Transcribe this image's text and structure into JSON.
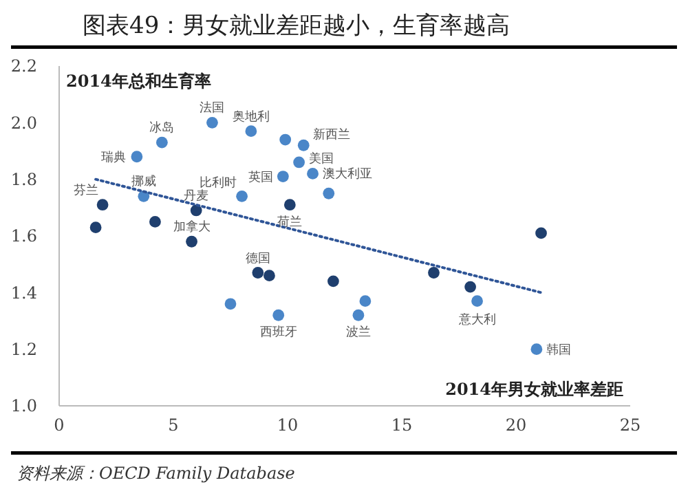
{
  "chart_data": {
    "type": "scatter",
    "title": "图表49：男女就业差距越小，生育率越高",
    "xlabel": "2014年男女就业率差距",
    "ylabel": "2014年总和生育率",
    "xlim": [
      0,
      25
    ],
    "xticks": [
      0,
      5,
      10,
      15,
      20,
      25
    ],
    "ylim": [
      1.0,
      2.2
    ],
    "yticks": [
      {
        "value": 1.0,
        "label": "1.0"
      },
      {
        "value": 1.2,
        "label": "1.2"
      },
      {
        "value": 1.4,
        "label": "1.4"
      },
      {
        "value": 1.6,
        "label": "1.6"
      },
      {
        "value": 1.8,
        "label": "1.8"
      },
      {
        "value": 2.0,
        "label": "2.0"
      },
      {
        "value": 2.2,
        "label": "2.2"
      }
    ],
    "grid": false,
    "series": [
      {
        "marker": "circle",
        "x": [
          6.7,
          8.4,
          9.9,
          10.7,
          4.5,
          3.4,
          10.5,
          11.1,
          9.8,
          11.8,
          3.7,
          8.0,
          1.9,
          6.0,
          10.1,
          1.6,
          4.2,
          5.8,
          8.7,
          9.2,
          12.0,
          7.5,
          9.6,
          13.1,
          13.4,
          16.4,
          18.0,
          18.3,
          20.9,
          21.1
        ],
        "values": [
          2.0,
          1.97,
          1.94,
          1.92,
          1.93,
          1.88,
          1.86,
          1.82,
          1.81,
          1.75,
          1.74,
          1.74,
          1.71,
          1.69,
          1.71,
          1.63,
          1.65,
          1.58,
          1.47,
          1.46,
          1.44,
          1.36,
          1.32,
          1.32,
          1.37,
          1.47,
          1.42,
          1.37,
          1.2,
          1.61
        ],
        "colors": [
          "#4a86c8",
          "#4a86c8",
          "#4a86c8",
          "#4a86c8",
          "#4a86c8",
          "#4a86c8",
          "#4a86c8",
          "#4a86c8",
          "#4a86c8",
          "#4a86c8",
          "#4a86c8",
          "#4a86c8",
          "#1f3f6e",
          "#1f3f6e",
          "#1f3f6e",
          "#1f3f6e",
          "#1f3f6e",
          "#1f3f6e",
          "#1f3f6e",
          "#1f3f6e",
          "#1f3f6e",
          "#4a86c8",
          "#4a86c8",
          "#4a86c8",
          "#4a86c8",
          "#1f3f6e",
          "#1f3f6e",
          "#4a86c8",
          "#4a86c8",
          "#1f3f6e"
        ]
      },
      {
        "type": "line",
        "color": "#2f5597",
        "line_style": "dotted",
        "x": [
          1.6,
          21.1
        ],
        "values": [
          1.8,
          1.4
        ]
      }
    ],
    "annotations": [
      {
        "text": "法国",
        "x": 6.7,
        "y": 2.0
      },
      {
        "text": "奥地利",
        "x": 8.4,
        "y": 1.97
      },
      {
        "text": "新西兰",
        "x": 10.7,
        "y": 1.92
      },
      {
        "text": "冰岛",
        "x": 4.5,
        "y": 1.93
      },
      {
        "text": "瑞典",
        "x": 3.4,
        "y": 1.88
      },
      {
        "text": "美国",
        "x": 10.5,
        "y": 1.86
      },
      {
        "text": "澳大利亚",
        "x": 11.1,
        "y": 1.82
      },
      {
        "text": "英国",
        "x": 9.8,
        "y": 1.81
      },
      {
        "text": "挪威",
        "x": 3.7,
        "y": 1.74
      },
      {
        "text": "比利时",
        "x": 8.0,
        "y": 1.74
      },
      {
        "text": "芬兰",
        "x": 1.9,
        "y": 1.71
      },
      {
        "text": "丹麦",
        "x": 6.0,
        "y": 1.69
      },
      {
        "text": "荷兰",
        "x": 10.1,
        "y": 1.71
      },
      {
        "text": "加拿大",
        "x": 5.8,
        "y": 1.58
      },
      {
        "text": "德国",
        "x": 8.7,
        "y": 1.47
      },
      {
        "text": "西班牙",
        "x": 9.6,
        "y": 1.32
      },
      {
        "text": "波兰",
        "x": 13.1,
        "y": 1.32
      },
      {
        "text": "意大利",
        "x": 18.3,
        "y": 1.37
      },
      {
        "text": "韩国",
        "x": 20.9,
        "y": 1.2
      },
      "资料来源：OECD Family Database"
    ]
  }
}
